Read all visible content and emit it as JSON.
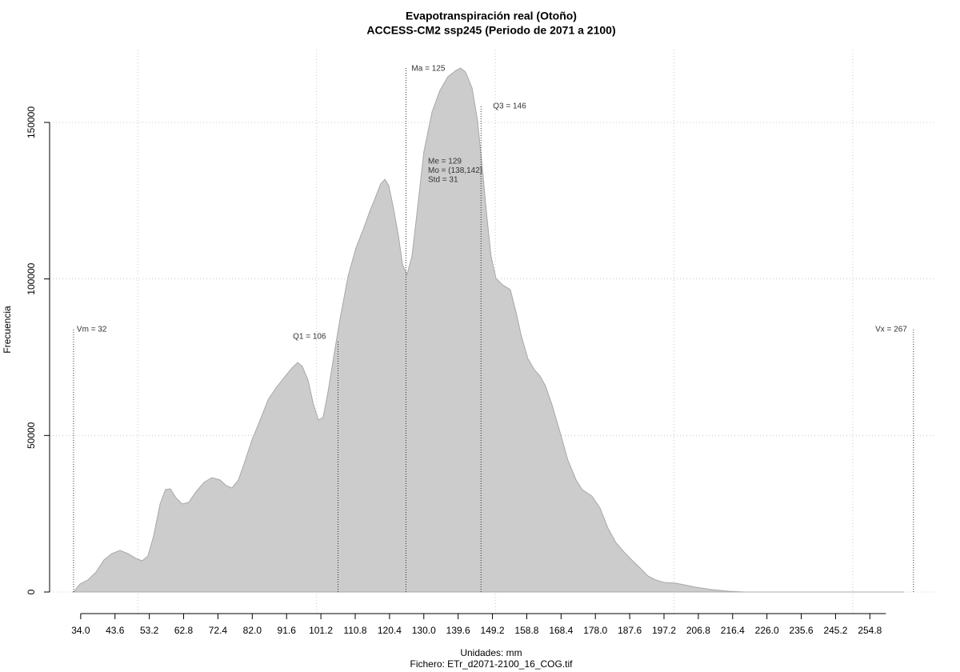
{
  "chart_data": {
    "type": "area",
    "title": "Evapotranspiración real (Otoño)",
    "subtitle": "ACCESS-CM2 ssp245 (Periodo de 2071 a 2100)",
    "xlabel": "Unidades: mm",
    "caption": "Fichero: ETr_d2071-2100_16_COG.tif",
    "ylabel": "Frecuencia",
    "color": "#cccccc",
    "line_color": "#a8a8a8",
    "grid": true,
    "xlim": [
      25.3,
      273.3
    ],
    "ylim": [
      -7155,
      173250
    ],
    "yticks": [
      0,
      50000,
      100000,
      150000
    ],
    "xgrid": [
      50,
      100,
      150,
      200,
      250
    ],
    "xticks": [
      {
        "value": 34,
        "label": "34.0"
      },
      43.6,
      53.2,
      62.8,
      72.4,
      {
        "value": 82,
        "label": "82.0"
      },
      91.6,
      101.2,
      110.8,
      120.4,
      {
        "value": 130,
        "label": "130.0"
      },
      139.6,
      149.2,
      158.8,
      168.4,
      {
        "value": 178,
        "label": "178.0"
      },
      187.6,
      197.2,
      206.8,
      216.4,
      {
        "value": 226,
        "label": "226.0"
      },
      235.6,
      245.2,
      254.8
    ],
    "x": [
      32.0,
      33.8,
      36.0,
      38.3,
      40.5,
      42.7,
      45.0,
      47.2,
      49.5,
      51.2,
      52.8,
      54.4,
      56.2,
      57.7,
      59.1,
      60.6,
      62.4,
      64.2,
      66.2,
      68.5,
      70.7,
      73.0,
      74.7,
      76.3,
      78.1,
      79.7,
      81.9,
      84.2,
      86.4,
      88.6,
      90.9,
      93.1,
      94.7,
      96.0,
      97.6,
      99.1,
      100.5,
      101.8,
      103.2,
      105.0,
      106.5,
      108.8,
      111.0,
      113.2,
      114.8,
      116.6,
      117.9,
      119.1,
      120.2,
      121.5,
      122.9,
      124.0,
      125.3,
      126.7,
      128.0,
      130.0,
      132.3,
      134.5,
      136.7,
      139.0,
      140.3,
      141.7,
      143.5,
      145.0,
      146.4,
      147.5,
      148.8,
      150.2,
      152.0,
      154.2,
      155.8,
      157.3,
      159.1,
      160.9,
      162.5,
      164.0,
      165.8,
      168.1,
      170.3,
      172.6,
      174.3,
      177.0,
      179.3,
      181.5,
      183.7,
      186.0,
      188.2,
      190.5,
      192.7,
      194.9,
      197.2,
      200.5,
      202.8,
      206.1,
      210.6,
      215.1,
      219.6,
      264.3
    ],
    "values": [
      0,
      2555,
      3830,
      6390,
      10220,
      12260,
      13290,
      12260,
      10730,
      9960,
      11500,
      17890,
      28100,
      32700,
      32960,
      30150,
      28100,
      28620,
      31940,
      35000,
      36540,
      35770,
      33980,
      33220,
      35770,
      40880,
      48550,
      54930,
      61320,
      65150,
      68470,
      71540,
      73330,
      72050,
      67710,
      60040,
      54930,
      55700,
      63880,
      76650,
      86870,
      100920,
      109870,
      116250,
      121360,
      126470,
      130300,
      131840,
      129790,
      122640,
      113700,
      104760,
      101430,
      107310,
      120090,
      140530,
      153300,
      160200,
      164540,
      166590,
      167350,
      166080,
      160970,
      150750,
      135420,
      121360,
      107310,
      100160,
      98110,
      96580,
      89430,
      81760,
      74610,
      71030,
      68990,
      65920,
      60040,
      51100,
      42160,
      35770,
      32700,
      30660,
      26830,
      20440,
      15840,
      12780,
      10220,
      7670,
      5110,
      3830,
      3070,
      2810,
      2300,
      1530,
      770,
      260,
      0,
      0
    ],
    "markers": [
      {
        "label": "Vm = 32",
        "x": 32
      },
      {
        "label": "Q1 = 106",
        "x": 106
      },
      {
        "label": "Ma = 125",
        "x": 125
      },
      {
        "label": "Q3 = 146",
        "x": 146
      },
      {
        "label": "Vx = 267",
        "x": 267
      }
    ],
    "stats": [
      "Me = 129",
      "Mo = (138,142]",
      "Std = 31"
    ]
  }
}
